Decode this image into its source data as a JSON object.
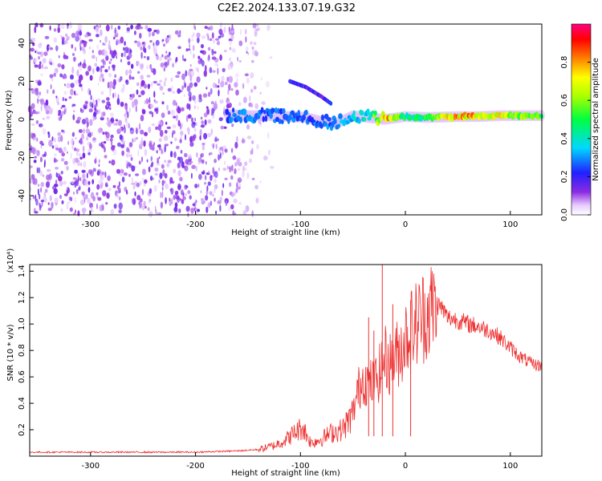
{
  "figure": {
    "title": "C2E2.2024.133.07.19.G32"
  },
  "chart_data": [
    {
      "type": "heatmap",
      "xlabel": "Height of straight line (km)",
      "ylabel": "Frequency (Hz)",
      "xlim": [
        -358,
        130
      ],
      "ylim": [
        -50,
        50
      ],
      "xticks": [
        -300,
        -200,
        -100,
        0,
        100
      ],
      "yticks": [
        -40,
        -20,
        0,
        20,
        40
      ],
      "noise_region_x": [
        -358,
        -175
      ],
      "ridge": [
        {
          "x": -170,
          "y": 2.5,
          "amp": 0.3
        },
        {
          "x": -150,
          "y": 2,
          "amp": 0.32
        },
        {
          "x": -130,
          "y": 2,
          "amp": 0.3
        },
        {
          "x": -110,
          "y": 1.5,
          "amp": 0.3
        },
        {
          "x": -95,
          "y": 1,
          "amp": 0.28
        },
        {
          "x": -80,
          "y": -1,
          "amp": 0.3
        },
        {
          "x": -65,
          "y": -2,
          "amp": 0.32
        },
        {
          "x": -50,
          "y": 2,
          "amp": 0.4
        },
        {
          "x": -35,
          "y": 1,
          "amp": 0.45
        },
        {
          "x": -20,
          "y": 0,
          "amp": 0.9
        },
        {
          "x": 0,
          "y": 1.5,
          "amp": 0.5
        },
        {
          "x": 20,
          "y": 1,
          "amp": 0.55
        },
        {
          "x": 50,
          "y": 1.5,
          "amp": 0.85
        },
        {
          "x": 70,
          "y": 1.5,
          "amp": 0.85
        },
        {
          "x": 90,
          "y": 2,
          "amp": 0.75
        },
        {
          "x": 110,
          "y": 2,
          "amp": 0.65
        },
        {
          "x": 130,
          "y": 2,
          "amp": 0.6
        }
      ],
      "harmonic_branch": [
        {
          "x": -110,
          "y": 20
        },
        {
          "x": -95,
          "y": 17
        },
        {
          "x": -80,
          "y": 12
        },
        {
          "x": -70,
          "y": 8
        }
      ],
      "colorbar": {
        "label": "Normalized spectral amplitude",
        "range": [
          0,
          1
        ],
        "ticks": [
          0.0,
          0.2,
          0.4,
          0.6,
          0.8
        ]
      }
    },
    {
      "type": "line",
      "xlabel": "Height of straight line (km)",
      "ylabel": "SNR (10 * v/v)",
      "scale_label": "(x10⁴)",
      "xlim": [
        -358,
        130
      ],
      "ylim": [
        0,
        1.45
      ],
      "xticks": [
        -300,
        -200,
        -100,
        0,
        100
      ],
      "yticks": [
        0.2,
        0.4,
        0.6,
        0.8,
        1.0,
        1.2,
        1.4
      ],
      "color": "#ee3030",
      "series": [
        {
          "x": [
            -358,
            -300,
            -250,
            -200,
            -160,
            -140,
            -125,
            -115,
            -105,
            -98,
            -90,
            -80,
            -70,
            -60,
            -50,
            -45,
            -40,
            -35,
            -30,
            -25,
            -20,
            -15,
            -10,
            -5,
            0,
            5,
            10,
            15,
            20,
            25,
            30,
            35,
            40,
            50,
            60,
            70,
            80,
            90,
            100,
            110,
            120,
            130
          ],
          "values": [
            0.03,
            0.03,
            0.03,
            0.03,
            0.04,
            0.05,
            0.08,
            0.12,
            0.18,
            0.22,
            0.1,
            0.13,
            0.18,
            0.2,
            0.32,
            0.5,
            0.6,
            0.55,
            0.55,
            0.62,
            0.75,
            0.7,
            0.75,
            0.8,
            0.9,
            0.95,
            1.0,
            1.05,
            1.08,
            1.12,
            1.15,
            1.12,
            1.05,
            1.03,
            1.0,
            0.98,
            0.95,
            0.9,
            0.82,
            0.75,
            0.7,
            0.68
          ]
        }
      ],
      "spikes": [
        {
          "x": -22,
          "y": 1.45
        },
        {
          "x": -35,
          "y": 1.05
        },
        {
          "x": -30,
          "y": 0.95
        },
        {
          "x": -12,
          "y": 1.15
        },
        {
          "x": 5,
          "y": 1.18
        }
      ]
    }
  ]
}
